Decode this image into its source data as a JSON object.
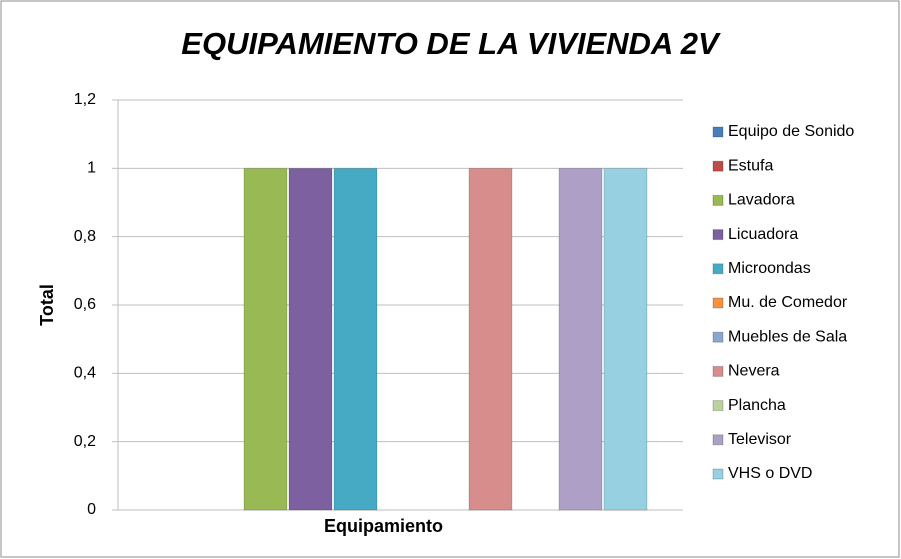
{
  "chart_data": {
    "type": "bar",
    "title": "EQUIPAMIENTO DE LA VIVIENDA 2V",
    "y_label": "Total",
    "categories": [
      "Equipamiento"
    ],
    "series": [
      {
        "name": "Equipo de Sonido",
        "color": "#4a7ebb",
        "values": [
          0
        ]
      },
      {
        "name": "Estufa",
        "color": "#be4b48",
        "values": [
          0
        ]
      },
      {
        "name": "Lavadora",
        "color": "#98b954",
        "values": [
          1
        ]
      },
      {
        "name": "Licuadora",
        "color": "#7d60a0",
        "values": [
          1
        ]
      },
      {
        "name": "Microondas",
        "color": "#46aac5",
        "values": [
          1
        ]
      },
      {
        "name": "Mu. de Comedor",
        "color": "#f69240",
        "values": [
          0
        ]
      },
      {
        "name": "Muebles de Sala",
        "color": "#8ca6d0",
        "values": [
          0
        ]
      },
      {
        "name": "Nevera",
        "color": "#d68d8b",
        "values": [
          1
        ]
      },
      {
        "name": "Plancha",
        "color": "#bbd39b",
        "values": [
          0
        ]
      },
      {
        "name": "Televisor",
        "color": "#ad9fc6",
        "values": [
          1
        ]
      },
      {
        "name": "VHS o DVD",
        "color": "#96d0e1",
        "values": [
          1
        ]
      }
    ],
    "ylim": [
      0,
      1.2
    ],
    "yticks": [
      0,
      {
        "value": 0.2,
        "label": "0,2"
      },
      {
        "value": 0.4,
        "label": "0,4"
      },
      {
        "value": 0.6,
        "label": "0,6"
      },
      {
        "value": 0.8,
        "label": "0,8"
      },
      1,
      {
        "value": 1.2,
        "label": "1,2"
      }
    ],
    "grid": true,
    "legend": "right"
  }
}
